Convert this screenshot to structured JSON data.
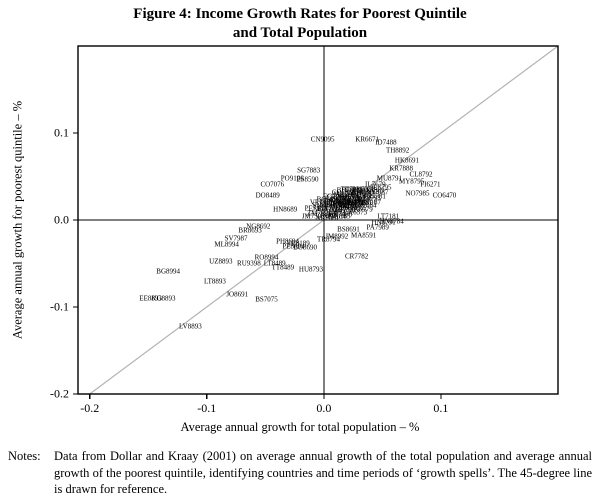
{
  "figure": {
    "title_line1": "Figure 4: Income Growth Rates for Poorest Quintile",
    "title_line2": "and Total Population",
    "notes_label": "Notes:",
    "notes_text": "Data from Dollar and Kraay (2001) on average annual growth of the total population and average annual growth of the poorest quintile, identifying countries and time periods of ‘growth spells’. The 45-degree line is drawn for reference."
  },
  "chart_data": {
    "type": "scatter",
    "title": "Figure 4: Income Growth Rates for Poorest Quintile and Total Population",
    "xlabel": "Average annual growth for total population – %",
    "ylabel": "Average annual growth for poorest quintile – %",
    "xlim": [
      -0.21,
      0.2
    ],
    "ylim": [
      -0.2,
      0.2
    ],
    "xticks": [
      -0.2,
      -0.1,
      0.0,
      0.1
    ],
    "yticks": [
      -0.2,
      -0.1,
      0.0,
      0.1
    ],
    "grid": false,
    "reference_line": "45-degree line through origin",
    "zero_lines": true,
    "marker": "country-code text labels",
    "points": [
      {
        "label": "CN9095",
        "x": -0.001,
        "y": 0.092
      },
      {
        "label": "KR6671",
        "x": 0.037,
        "y": 0.092
      },
      {
        "label": "ID7488",
        "x": 0.053,
        "y": 0.088
      },
      {
        "label": "TH8892",
        "x": 0.063,
        "y": 0.079
      },
      {
        "label": "HK8691",
        "x": 0.071,
        "y": 0.068
      },
      {
        "label": "KR7888",
        "x": 0.066,
        "y": 0.059
      },
      {
        "label": "MU8791",
        "x": 0.056,
        "y": 0.047
      },
      {
        "label": "MY8795",
        "x": 0.075,
        "y": 0.044
      },
      {
        "label": "CL8792",
        "x": 0.083,
        "y": 0.052
      },
      {
        "label": "FI6271",
        "x": 0.091,
        "y": 0.04
      },
      {
        "label": "NO7985",
        "x": 0.08,
        "y": 0.03
      },
      {
        "label": "CO6470",
        "x": 0.103,
        "y": 0.028
      },
      {
        "label": "SG7883",
        "x": -0.013,
        "y": 0.056
      },
      {
        "label": "PO9196",
        "x": -0.027,
        "y": 0.047
      },
      {
        "label": "ES8590",
        "x": -0.014,
        "y": 0.046
      },
      {
        "label": "CO7076",
        "x": -0.044,
        "y": 0.04
      },
      {
        "label": "DO8489",
        "x": -0.048,
        "y": 0.028
      },
      {
        "label": "HN8689",
        "x": -0.033,
        "y": 0.012
      },
      {
        "label": "NG8692",
        "x": -0.056,
        "y": -0.008
      },
      {
        "label": "BR8693",
        "x": -0.063,
        "y": -0.013
      },
      {
        "label": "SV7987",
        "x": -0.075,
        "y": -0.022
      },
      {
        "label": "ML8994",
        "x": -0.083,
        "y": -0.029
      },
      {
        "label": "PH8694",
        "x": -0.031,
        "y": -0.025
      },
      {
        "label": "VE8189",
        "x": -0.022,
        "y": -0.028
      },
      {
        "label": "PE8694",
        "x": -0.026,
        "y": -0.031
      },
      {
        "label": "BO8690",
        "x": -0.016,
        "y": -0.032
      },
      {
        "label": "RO8994",
        "x": -0.049,
        "y": -0.044
      },
      {
        "label": "LT8489",
        "x": -0.042,
        "y": -0.051
      },
      {
        "label": "TT8489",
        "x": -0.035,
        "y": -0.055
      },
      {
        "label": "HU8793",
        "x": -0.011,
        "y": -0.057
      },
      {
        "label": "UZ8893",
        "x": -0.088,
        "y": -0.048
      },
      {
        "label": "RU9398",
        "x": -0.064,
        "y": -0.051
      },
      {
        "label": "BG8994",
        "x": -0.133,
        "y": -0.06
      },
      {
        "label": "LT8893",
        "x": -0.093,
        "y": -0.071
      },
      {
        "label": "JO8691",
        "x": -0.074,
        "y": -0.086
      },
      {
        "label": "BS7075",
        "x": -0.049,
        "y": -0.092
      },
      {
        "label": "EE8893",
        "x": -0.148,
        "y": -0.091
      },
      {
        "label": "KG8893",
        "x": -0.137,
        "y": -0.091
      },
      {
        "label": "LV8893",
        "x": -0.114,
        "y": -0.123
      },
      {
        "label": "CR7782",
        "x": 0.028,
        "y": -0.042
      },
      {
        "label": "BS8691",
        "x": 0.021,
        "y": -0.012
      },
      {
        "label": "JM8992",
        "x": 0.011,
        "y": -0.019
      },
      {
        "label": "MA8591",
        "x": 0.034,
        "y": -0.018
      },
      {
        "label": "TR8794",
        "x": 0.004,
        "y": -0.023
      },
      {
        "label": "HN8791",
        "x": 0.051,
        "y": -0.004
      },
      {
        "label": "PA7989",
        "x": 0.046,
        "y": -0.009
      },
      {
        "label": "LT7181",
        "x": 0.055,
        "y": 0.004
      },
      {
        "label": "HN8784",
        "x": 0.058,
        "y": -0.002
      },
      {
        "label": "IL7679",
        "x": 0.044,
        "y": 0.04
      },
      {
        "label": "IE8795",
        "x": 0.049,
        "y": 0.037
      },
      {
        "label": "IN7783",
        "x": 0.013,
        "y": 0.019
      },
      {
        "label": "US7080",
        "x": 0.018,
        "y": 0.015
      },
      {
        "label": "GB7886",
        "x": 0.023,
        "y": 0.021
      },
      {
        "label": "FR7084",
        "x": 0.026,
        "y": 0.023
      },
      {
        "label": "JP7080",
        "x": 0.031,
        "y": 0.028
      },
      {
        "label": "IT7784",
        "x": 0.029,
        "y": 0.018
      },
      {
        "label": "NL7783",
        "x": 0.015,
        "y": 0.012
      },
      {
        "label": "BE7885",
        "x": 0.02,
        "y": 0.01
      },
      {
        "label": "DK7681",
        "x": 0.016,
        "y": 0.023
      },
      {
        "label": "SE6775",
        "x": 0.021,
        "y": 0.027
      },
      {
        "label": "AT7687",
        "x": 0.025,
        "y": 0.014
      },
      {
        "label": "CH8092",
        "x": 0.008,
        "y": 0.008
      },
      {
        "label": "ES7480",
        "x": 0.01,
        "y": 0.021
      },
      {
        "label": "PT8090",
        "x": 0.033,
        "y": 0.031
      },
      {
        "label": "GR7488",
        "x": 0.014,
        "y": 0.006
      },
      {
        "label": "TR6877",
        "x": 0.035,
        "y": 0.022
      },
      {
        "label": "MX7784",
        "x": 0.005,
        "y": 0.013
      },
      {
        "label": "MY7389",
        "x": 0.041,
        "y": 0.033
      },
      {
        "label": "TH7581",
        "x": 0.043,
        "y": 0.026
      },
      {
        "label": "ID7687",
        "x": 0.046,
        "y": 0.031
      },
      {
        "label": "LK6373",
        "x": 0.027,
        "y": 0.008
      },
      {
        "label": "PK6979",
        "x": 0.032,
        "y": 0.012
      },
      {
        "label": "EG6575",
        "x": 0.03,
        "y": 0.026
      },
      {
        "label": "MA7084",
        "x": 0.019,
        "y": 0.029
      },
      {
        "label": "TN6575",
        "x": 0.037,
        "y": 0.029
      },
      {
        "label": "CI8588",
        "x": 0.002,
        "y": 0.005
      },
      {
        "label": "KE7792",
        "x": 0.006,
        "y": 0.017
      },
      {
        "label": "ZM7691",
        "x": -0.004,
        "y": 0.007
      },
      {
        "label": "UG8992",
        "x": 0.028,
        "y": 0.033
      },
      {
        "label": "NG8592",
        "x": 0.001,
        "y": 0.011
      },
      {
        "label": "CR7186",
        "x": 0.012,
        "y": 0.025
      },
      {
        "label": "PE7185",
        "x": -0.007,
        "y": 0.013
      },
      {
        "label": "VE7181",
        "x": -0.002,
        "y": 0.019
      },
      {
        "label": "EC7087",
        "x": 0.009,
        "y": 0.027
      },
      {
        "label": "BO6890",
        "x": 0.004,
        "y": 0.023
      },
      {
        "label": "CL7187",
        "x": 0.039,
        "y": 0.019
      },
      {
        "label": "CO7888",
        "x": 0.017,
        "y": 0.031
      },
      {
        "label": "TT7181",
        "x": 0.024,
        "y": 0.035
      },
      {
        "label": "PH6185",
        "x": 0.013,
        "y": 0.003
      },
      {
        "label": "BD7386",
        "x": 0.021,
        "y": 0.033
      },
      {
        "label": "NP7795",
        "x": 0.023,
        "y": 0.025
      },
      {
        "label": "IR7084",
        "x": 0.036,
        "y": 0.016
      },
      {
        "label": "DZ6888",
        "x": 0.017,
        "y": 0.018
      },
      {
        "label": "GT7187",
        "x": 0.007,
        "y": 0.019
      },
      {
        "label": "JM7590",
        "x": -0.009,
        "y": 0.003
      },
      {
        "label": "SN6091",
        "x": 0.0,
        "y": 0.016
      },
      {
        "label": "ET8195",
        "x": 0.011,
        "y": 0.014
      },
      {
        "label": "GH8792",
        "x": 0.026,
        "y": 0.016
      },
      {
        "label": "TZ6991",
        "x": 0.019,
        "y": 0.02
      },
      {
        "label": "ZA7085",
        "x": 0.014,
        "y": 0.016
      },
      {
        "label": "MR8793",
        "x": 0.038,
        "y": 0.024
      },
      {
        "label": "AU7085",
        "x": 0.022,
        "y": 0.017
      },
      {
        "label": "CA7184",
        "x": 0.024,
        "y": 0.019
      },
      {
        "label": "NZ7184",
        "x": 0.009,
        "y": 0.004
      },
      {
        "label": "AR7081",
        "x": 0.003,
        "y": 0.001
      },
      {
        "label": "UY7081",
        "x": 0.031,
        "y": 0.02
      },
      {
        "label": "PY7288",
        "x": 0.034,
        "y": 0.034
      }
    ]
  }
}
